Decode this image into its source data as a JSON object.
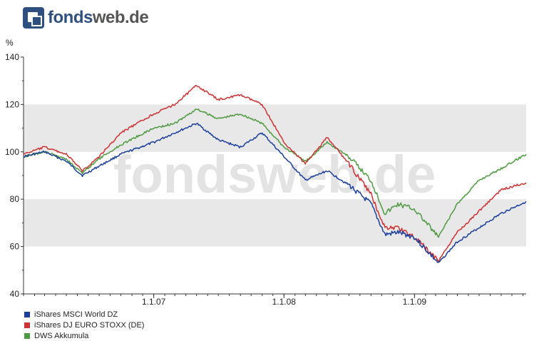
{
  "logo": {
    "part1": "fonds",
    "part2": "web.de"
  },
  "watermark": "fondsweb.de",
  "colors": {
    "series1": "#1c3f9a",
    "series2": "#cc3333",
    "series3": "#4e9a40",
    "band": "#e8e8e8",
    "axis": "#333333"
  },
  "chart_data": {
    "type": "line",
    "ylabel": "%",
    "ylim": [
      40,
      140
    ],
    "yticks": [
      40,
      60,
      80,
      100,
      120,
      140
    ],
    "xlim": [
      "2006-01-01",
      "2009-11-10"
    ],
    "xticks": [
      {
        "date": "2007-01-01",
        "label": "1.1.07"
      },
      {
        "date": "2008-01-01",
        "label": "1.1.08"
      },
      {
        "date": "2009-01-01",
        "label": "1.1.09"
      }
    ],
    "grid": "alternating horizontal bands",
    "legend_position": "bottom-left",
    "x": [
      "2006-01-01",
      "2006-03-01",
      "2006-05-01",
      "2006-06-15",
      "2006-08-01",
      "2006-10-01",
      "2007-01-01",
      "2007-03-01",
      "2007-05-01",
      "2007-07-01",
      "2007-09-01",
      "2007-11-01",
      "2008-01-01",
      "2008-03-01",
      "2008-05-01",
      "2008-07-01",
      "2008-09-01",
      "2008-10-10",
      "2008-11-15",
      "2008-12-31",
      "2009-03-09",
      "2009-05-01",
      "2009-07-01",
      "2009-09-01",
      "2009-11-10"
    ],
    "series": [
      {
        "name": "iShares MSCI World DZ",
        "values": [
          98,
          100,
          96,
          90,
          94,
          99,
          104,
          108,
          112,
          105,
          102,
          108,
          98,
          88,
          92,
          86,
          78,
          65,
          66,
          64,
          53,
          62,
          68,
          74,
          79
        ]
      },
      {
        "name": "iShares DJ EURO STOXX (DE)",
        "values": [
          99,
          102,
          99,
          92,
          98,
          108,
          116,
          120,
          128,
          122,
          124,
          120,
          104,
          95,
          106,
          95,
          82,
          68,
          68,
          64,
          54,
          66,
          75,
          84,
          87
        ]
      },
      {
        "name": "DWS Akkumula",
        "values": [
          98,
          100,
          97,
          91,
          97,
          103,
          110,
          112,
          118,
          114,
          116,
          112,
          102,
          96,
          104,
          98,
          88,
          74,
          78,
          76,
          64,
          78,
          88,
          93,
          99
        ]
      }
    ]
  }
}
